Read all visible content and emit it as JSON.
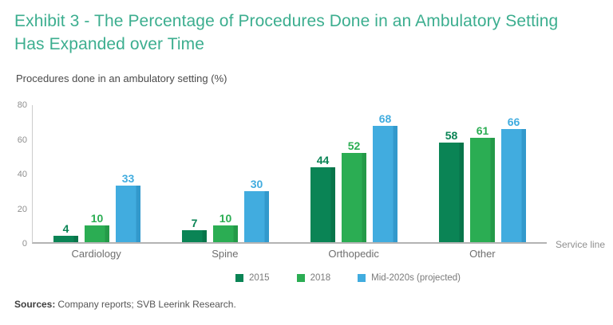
{
  "header": {
    "title": "Exhibit 3 - The Percentage of Procedures Done in an Ambulatory Setting Has Expanded over Time"
  },
  "colors": {
    "title_accent": "#3CAE8F",
    "axis_line": "#CCCCCC",
    "baseline": "#B3B3B3"
  },
  "chart_data": {
    "type": "bar",
    "title": "Exhibit 3 - The Percentage of Procedures Done in an Ambulatory Setting Has Expanded over Time",
    "subtitle": "Procedures done in an ambulatory setting (%)",
    "categories": [
      "Cardiology",
      "Spine",
      "Orthopedic",
      "Other"
    ],
    "series": [
      {
        "name": "2015",
        "color": "#0A8455",
        "edge_color": "#08754A",
        "values": [
          4,
          7,
          44,
          58
        ]
      },
      {
        "name": "2018",
        "color": "#2BAD53",
        "edge_color": "#249A48",
        "values": [
          10,
          10,
          52,
          61
        ]
      },
      {
        "name": "Mid-2020s (projected)",
        "color": "#41ACDF",
        "edge_color": "#3299CC",
        "values": [
          33,
          30,
          68,
          66
        ]
      }
    ],
    "xlabel": "Service line",
    "ylabel": "Procedures done in an ambulatory setting (%)",
    "ylim": [
      0,
      80
    ],
    "yticks": [
      0,
      20,
      40,
      60,
      80
    ],
    "grid": false,
    "legend_position": "bottom",
    "value_labels": true
  },
  "footer": {
    "sources_label": "Sources:",
    "sources_text": "Company reports; SVB Leerink Research."
  }
}
